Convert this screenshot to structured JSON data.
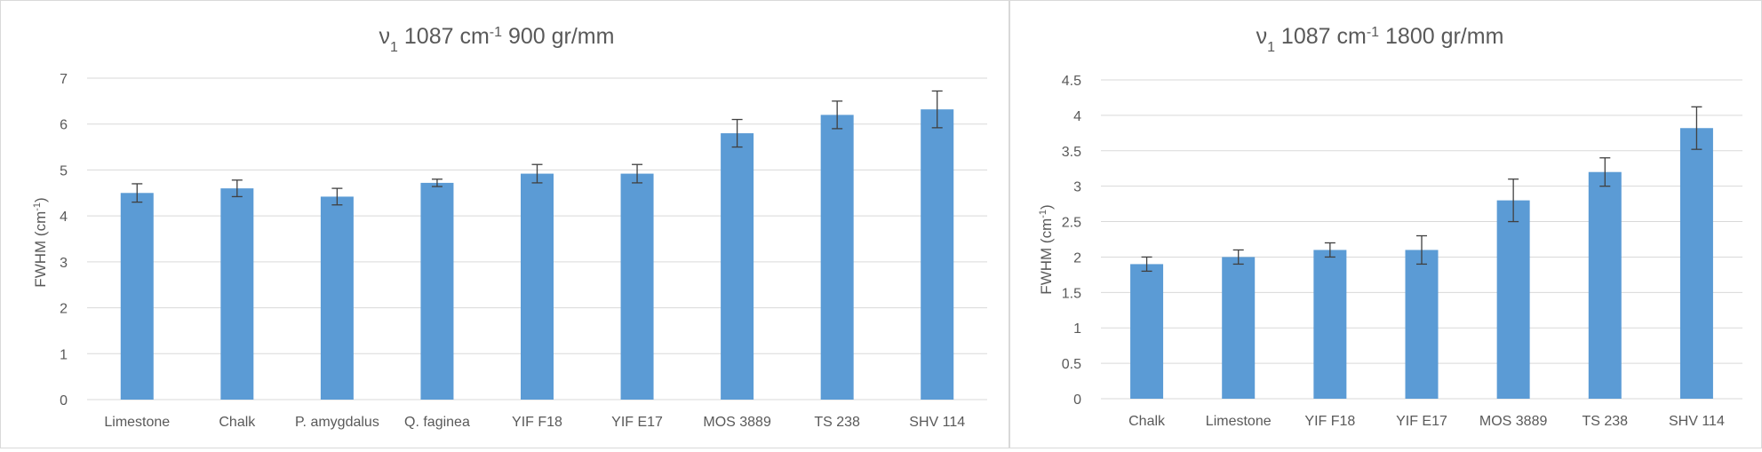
{
  "chart_data": [
    {
      "type": "bar",
      "title": "ν1 1087 cm-1 900 gr/mm",
      "title_parts": {
        "nu": "ν",
        "nu_sub": "1",
        "wavenumber": " 1087 cm",
        "exp": "-1",
        "grating": " 900 gr/mm"
      },
      "ylabel": "FWHM (cm-1)",
      "ylabel_parts": {
        "base": "FWHM (cm",
        "exp": "-1",
        "close": ")"
      },
      "xlabel": "",
      "ylim": [
        0,
        7
      ],
      "yticks": [
        "0",
        "1",
        "2",
        "3",
        "4",
        "5",
        "6",
        "7"
      ],
      "grid": true,
      "categories": [
        "Limestone",
        "Chalk",
        "P. amygdalus",
        "Q. faginea",
        "YIF F18",
        "YIF E17",
        "MOS 3889",
        "TS 238",
        "SHV 114"
      ],
      "values": [
        4.5,
        4.6,
        4.42,
        4.72,
        4.92,
        4.92,
        5.8,
        6.2,
        6.32
      ],
      "errors": [
        0.2,
        0.18,
        0.18,
        0.08,
        0.2,
        0.2,
        0.3,
        0.3,
        0.4
      ],
      "color": "#5b9bd5"
    },
    {
      "type": "bar",
      "title": "ν1 1087 cm-1 1800 gr/mm",
      "title_parts": {
        "nu": "ν",
        "nu_sub": "1",
        "wavenumber": " 1087 cm",
        "exp": "-1",
        "grating": " 1800 gr/mm"
      },
      "ylabel": "FWHM (cm-1)",
      "ylabel_parts": {
        "base": "FWHM (cm",
        "exp": "-1",
        "close": ")"
      },
      "xlabel": "",
      "ylim": [
        0,
        4.5
      ],
      "yticks": [
        "0",
        "0.5",
        "1",
        "1.5",
        "2",
        "2.5",
        "3",
        "3.5",
        "4",
        "4.5"
      ],
      "grid": true,
      "categories": [
        "Chalk",
        "Limestone",
        "YIF F18",
        "YIF E17",
        "MOS 3889",
        "TS 238",
        "SHV 114"
      ],
      "values": [
        1.9,
        2.0,
        2.1,
        2.1,
        2.8,
        3.2,
        3.82
      ],
      "errors": [
        0.1,
        0.1,
        0.1,
        0.2,
        0.3,
        0.2,
        0.3
      ],
      "color": "#5b9bd5"
    }
  ],
  "colors": {
    "bar": "#5b9bd5",
    "grid": "#d9d9d9",
    "text": "#595959",
    "error": "#404040"
  }
}
